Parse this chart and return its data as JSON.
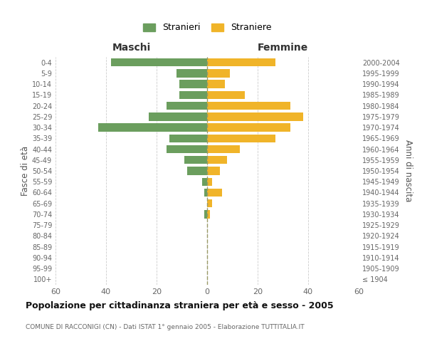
{
  "age_groups": [
    "100+",
    "95-99",
    "90-94",
    "85-89",
    "80-84",
    "75-79",
    "70-74",
    "65-69",
    "60-64",
    "55-59",
    "50-54",
    "45-49",
    "40-44",
    "35-39",
    "30-34",
    "25-29",
    "20-24",
    "15-19",
    "10-14",
    "5-9",
    "0-4"
  ],
  "birth_years": [
    "≤ 1904",
    "1905-1909",
    "1910-1914",
    "1915-1919",
    "1920-1924",
    "1925-1929",
    "1930-1934",
    "1935-1939",
    "1940-1944",
    "1945-1949",
    "1950-1954",
    "1955-1959",
    "1960-1964",
    "1965-1969",
    "1970-1974",
    "1975-1979",
    "1980-1984",
    "1985-1989",
    "1990-1994",
    "1995-1999",
    "2000-2004"
  ],
  "maschi": [
    0,
    0,
    0,
    0,
    0,
    0,
    1,
    0,
    1,
    2,
    8,
    9,
    16,
    15,
    43,
    23,
    16,
    11,
    11,
    12,
    38
  ],
  "femmine": [
    0,
    0,
    0,
    0,
    0,
    0,
    1,
    2,
    6,
    2,
    5,
    8,
    13,
    27,
    33,
    38,
    33,
    15,
    7,
    9,
    27
  ],
  "maschi_color": "#6b9e5e",
  "femmine_color": "#f0b429",
  "background_color": "#ffffff",
  "grid_color": "#cccccc",
  "title": "Popolazione per cittadinanza straniera per età e sesso - 2005",
  "subtitle": "COMUNE DI RACCONIGI (CN) - Dati ISTAT 1° gennaio 2005 - Elaborazione TUTTITALIA.IT",
  "ylabel_left": "Fasce di età",
  "ylabel_right": "Anni di nascita",
  "xlabel_left": "Maschi",
  "xlabel_right": "Femmine",
  "legend_maschi": "Stranieri",
  "legend_femmine": "Straniere",
  "xlim": 60
}
